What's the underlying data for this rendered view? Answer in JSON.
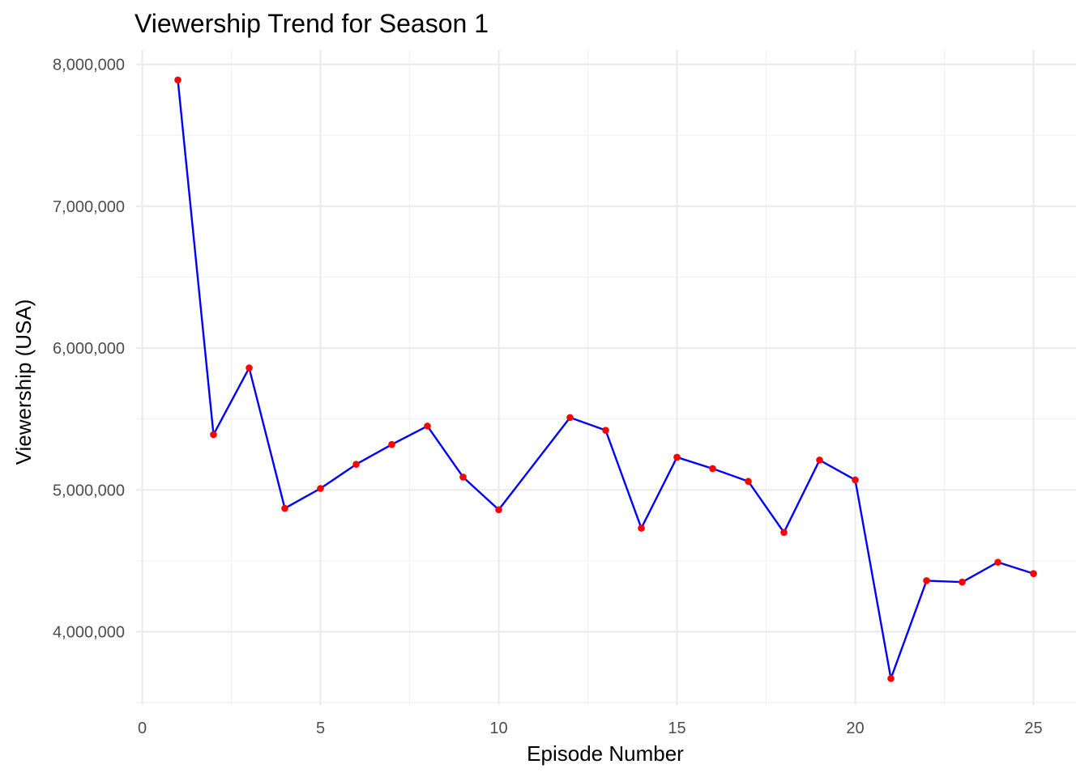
{
  "chart_data": {
    "type": "line",
    "title": "Viewership Trend for Season 1",
    "xlabel": "Episode Number",
    "ylabel": "Viewership (USA)",
    "x_ticks": [
      0,
      5,
      10,
      15,
      20,
      25
    ],
    "x_tick_labels": [
      "0",
      "5",
      "10",
      "15",
      "20",
      "25"
    ],
    "y_ticks": [
      4000000,
      5000000,
      6000000,
      7000000,
      8000000
    ],
    "y_tick_labels": [
      "4,000,000",
      "5,000,000",
      "6,000,000",
      "7,000,000",
      "8,000,000"
    ],
    "xlim": [
      0,
      26
    ],
    "ylim": [
      3500000,
      8000000
    ],
    "grid": true,
    "legend": "none",
    "line_color": "#0000ff",
    "point_color": "#ff0000",
    "series": [
      {
        "x": [
          1,
          2,
          3,
          4,
          5,
          6,
          7,
          8,
          9,
          10,
          12,
          13,
          14,
          15,
          16,
          17,
          18,
          19,
          20,
          21,
          22,
          23,
          24,
          25
        ],
        "values": [
          7890000,
          5390000,
          5860000,
          4870000,
          5010000,
          5180000,
          5320000,
          5450000,
          5090000,
          4860000,
          5510000,
          5420000,
          4730000,
          5230000,
          5150000,
          5060000,
          4700000,
          5210000,
          5070000,
          3670000,
          4360000,
          4350000,
          4490000,
          4410000
        ]
      }
    ]
  }
}
